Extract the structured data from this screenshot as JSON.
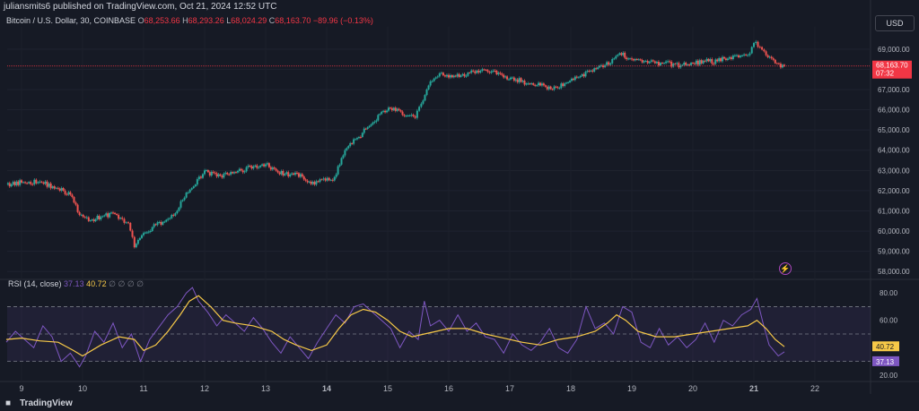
{
  "header": {
    "published": "juliansmits6 published on TradingView.com, Oct 21, 2024 12:52 UTC",
    "symbol": "Bitcoin / U.S. Dollar, 30, COINBASE",
    "o_label": "O",
    "o_value": "68,253.66",
    "h_label": "H",
    "h_value": "68,293.26",
    "l_label": "L",
    "l_value": "68,024.29",
    "c_label": "C",
    "c_value": "68,163.70",
    "change": "−89.96 (−0.13%)"
  },
  "currency": "USD",
  "footer": {
    "brand": "TradingView"
  },
  "colors": {
    "up": "#26a69a",
    "down": "#ef5350",
    "rsi": "#7e57c2",
    "rsi_ma": "#f7c948",
    "price_line": "#f23645"
  },
  "rsi_header": {
    "name": "RSI (14, close)",
    "rsi": "37.13",
    "ma": "40.72",
    "extras": "∅ ∅ ∅ ∅"
  },
  "chart_data": [
    {
      "type": "candlestick",
      "title": "Bitcoin / U.S. Dollar, 30, COINBASE",
      "x_ticks": [
        "9",
        "10",
        "11",
        "12",
        "13",
        "14",
        "15",
        "16",
        "17",
        "18",
        "19",
        "20",
        "21",
        "22"
      ],
      "y_ticks": [
        "58,000.00",
        "59,000.00",
        "60,000.00",
        "61,000.00",
        "62,000.00",
        "63,000.00",
        "64,000.00",
        "65,000.00",
        "66,000.00",
        "67,000.00",
        "68,000.00",
        "69,000.00"
      ],
      "ylim": [
        57700,
        70100
      ],
      "last_price": 68163.7,
      "last_price_label": "68,163.70",
      "countdown_label": "07:32",
      "series": [
        {
          "name": "BTCUSD",
          "x": [
            8.75,
            9.0,
            9.3,
            9.6,
            9.8,
            9.95,
            10.1,
            10.3,
            10.5,
            10.65,
            10.75,
            10.85,
            11.0,
            11.2,
            11.4,
            11.55,
            11.7,
            11.85,
            12.0,
            12.2,
            12.4,
            12.6,
            12.8,
            13.0,
            13.2,
            13.4,
            13.6,
            13.8,
            13.95,
            14.1,
            14.3,
            14.5,
            14.7,
            14.9,
            15.1,
            15.3,
            15.45,
            15.55,
            15.7,
            15.85,
            16.0,
            16.2,
            16.4,
            16.55,
            16.7,
            16.9,
            17.1,
            17.3,
            17.5,
            17.7,
            17.9,
            18.1,
            18.3,
            18.5,
            18.65,
            18.8,
            19.0,
            19.2,
            19.5,
            19.8,
            20.0,
            20.2,
            20.4,
            20.6,
            20.75,
            20.9,
            21.0,
            21.1,
            21.2,
            21.35,
            21.5
          ],
          "close": [
            62300,
            62400,
            62450,
            62100,
            61800,
            60800,
            60500,
            60700,
            60900,
            60600,
            60400,
            59200,
            59900,
            60300,
            60600,
            61000,
            61900,
            62300,
            63000,
            62700,
            62800,
            63000,
            63200,
            63300,
            62900,
            62800,
            62700,
            62300,
            62600,
            62500,
            64000,
            64600,
            65200,
            65900,
            66100,
            65700,
            65600,
            66300,
            67400,
            67800,
            67600,
            67700,
            67900,
            68000,
            67900,
            67600,
            67500,
            67300,
            67200,
            67000,
            67300,
            67600,
            67900,
            68200,
            68300,
            68800,
            68500,
            68400,
            68300,
            68200,
            68300,
            68400,
            68400,
            68600,
            68600,
            68700,
            69300,
            69100,
            68700,
            68300,
            68160
          ]
        }
      ]
    },
    {
      "type": "line",
      "title": "RSI (14, close)",
      "y_ticks": [
        "20.00",
        "40.00",
        "60.00",
        "80.00"
      ],
      "ylim": [
        16,
        86
      ],
      "bands": [
        30,
        50,
        70
      ],
      "rsi_last_label": "37.13",
      "ma_last_label": "40.72",
      "series": [
        {
          "name": "RSI",
          "x": [
            8.75,
            8.9,
            9.05,
            9.2,
            9.35,
            9.5,
            9.65,
            9.8,
            9.95,
            10.05,
            10.2,
            10.35,
            10.5,
            10.65,
            10.8,
            10.95,
            11.1,
            11.25,
            11.4,
            11.55,
            11.7,
            11.8,
            11.9,
            12.05,
            12.2,
            12.35,
            12.5,
            12.65,
            12.8,
            12.95,
            13.1,
            13.25,
            13.4,
            13.55,
            13.7,
            13.85,
            14.0,
            14.15,
            14.3,
            14.45,
            14.6,
            14.75,
            14.9,
            15.05,
            15.2,
            15.35,
            15.5,
            15.6,
            15.7,
            15.85,
            16.0,
            16.15,
            16.3,
            16.45,
            16.6,
            16.75,
            16.9,
            17.05,
            17.2,
            17.35,
            17.5,
            17.65,
            17.8,
            17.95,
            18.1,
            18.25,
            18.4,
            18.55,
            18.7,
            18.85,
            19.0,
            19.15,
            19.3,
            19.45,
            19.6,
            19.75,
            19.9,
            20.05,
            20.2,
            20.35,
            20.5,
            20.65,
            20.8,
            20.95,
            21.05,
            21.15,
            21.25,
            21.4,
            21.5
          ],
          "values": [
            44,
            52,
            46,
            40,
            56,
            48,
            30,
            36,
            26,
            34,
            52,
            44,
            58,
            40,
            50,
            30,
            46,
            55,
            64,
            70,
            80,
            84,
            74,
            66,
            56,
            64,
            58,
            52,
            62,
            54,
            44,
            36,
            48,
            40,
            32,
            44,
            54,
            64,
            58,
            70,
            72,
            66,
            60,
            54,
            40,
            52,
            46,
            74,
            56,
            60,
            52,
            64,
            52,
            58,
            48,
            46,
            36,
            50,
            42,
            38,
            44,
            54,
            40,
            36,
            46,
            70,
            54,
            58,
            50,
            70,
            66,
            44,
            40,
            54,
            42,
            48,
            40,
            46,
            58,
            44,
            60,
            56,
            64,
            68,
            76,
            58,
            42,
            34,
            37
          ]
        },
        {
          "name": "RSI-based MA",
          "x": [
            8.75,
            9.0,
            9.3,
            9.6,
            9.85,
            10.0,
            10.3,
            10.6,
            10.85,
            11.0,
            11.2,
            11.4,
            11.6,
            11.75,
            11.9,
            12.1,
            12.3,
            12.5,
            12.8,
            13.1,
            13.3,
            13.5,
            13.75,
            14.0,
            14.2,
            14.4,
            14.6,
            14.8,
            15.0,
            15.2,
            15.4,
            15.6,
            15.8,
            16.0,
            16.3,
            16.6,
            16.9,
            17.2,
            17.5,
            17.8,
            18.1,
            18.4,
            18.6,
            18.75,
            18.9,
            19.1,
            19.4,
            19.7,
            20.0,
            20.3,
            20.6,
            20.9,
            21.05,
            21.2,
            21.35,
            21.5
          ],
          "values": [
            46,
            47,
            45,
            44,
            38,
            34,
            42,
            48,
            46,
            38,
            42,
            52,
            64,
            74,
            78,
            70,
            60,
            58,
            56,
            52,
            46,
            42,
            38,
            42,
            54,
            64,
            68,
            66,
            60,
            52,
            48,
            50,
            52,
            54,
            54,
            50,
            47,
            44,
            42,
            46,
            48,
            52,
            58,
            64,
            60,
            52,
            48,
            48,
            50,
            52,
            54,
            56,
            60,
            54,
            46,
            40.7
          ]
        }
      ]
    }
  ]
}
